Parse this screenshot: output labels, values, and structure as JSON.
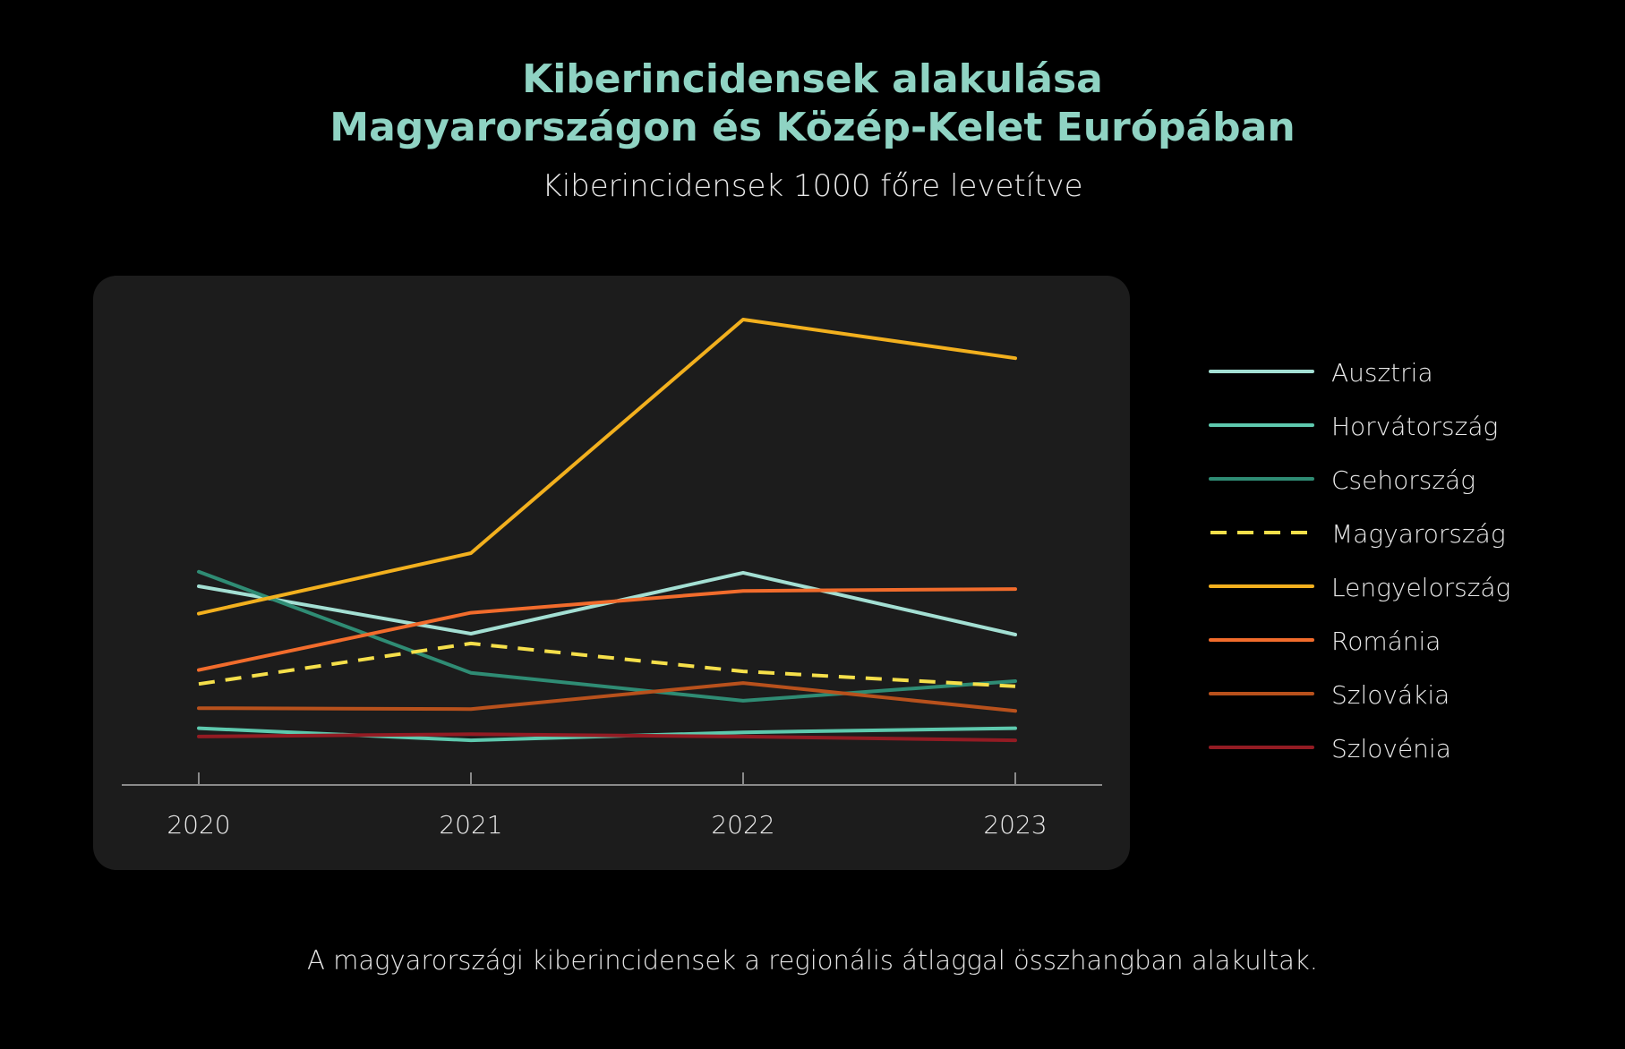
{
  "title_line1": "Kiberincidensek alakulása",
  "title_line2": "Magyarországon és Közép-Kelet Európában",
  "subtitle": "Kiberincidensek 1000 főre levetítve",
  "footnote": "A magyarországi kiberincidensek a regionális átlaggal összhangban alakultak.",
  "chart_data": {
    "type": "line",
    "title": "Kiberincidensek alakulása Magyarországon és Közép-Kelet Európában",
    "subtitle": "Kiberincidensek 1000 főre levetítve",
    "x": [
      "2020",
      "2021",
      "2022",
      "2023"
    ],
    "xlabel": "",
    "ylabel": "",
    "ylim": [
      0,
      100
    ],
    "grid": false,
    "legend_position": "right",
    "series": [
      {
        "name": "Ausztria",
        "color": "#a3dfd3",
        "dashed": false,
        "values": [
          42.7,
          32.5,
          45.6,
          32.3
        ]
      },
      {
        "name": "Horvátország",
        "color": "#5ec9ae",
        "dashed": false,
        "values": [
          12.2,
          9.6,
          11.3,
          12.2
        ]
      },
      {
        "name": "Csehország",
        "color": "#2f8c74",
        "dashed": false,
        "values": [
          45.8,
          24.1,
          18.1,
          22.3
        ]
      },
      {
        "name": "Magyarország",
        "color": "#f5df4a",
        "dashed": true,
        "values": [
          21.7,
          30.4,
          24.4,
          21.2
        ]
      },
      {
        "name": "Lengyelország",
        "color": "#f2b01e",
        "dashed": false,
        "values": [
          36.8,
          49.8,
          100.0,
          91.7
        ]
      },
      {
        "name": "Románia",
        "color": "#f26c2c",
        "dashed": false,
        "values": [
          24.7,
          37.0,
          41.7,
          42.1
        ]
      },
      {
        "name": "Szlovákia",
        "color": "#b8511c",
        "dashed": false,
        "values": [
          16.5,
          16.3,
          21.9,
          15.9
        ]
      },
      {
        "name": "Szlovénia",
        "color": "#931b23",
        "dashed": false,
        "values": [
          10.4,
          10.9,
          10.4,
          9.6
        ]
      }
    ]
  }
}
